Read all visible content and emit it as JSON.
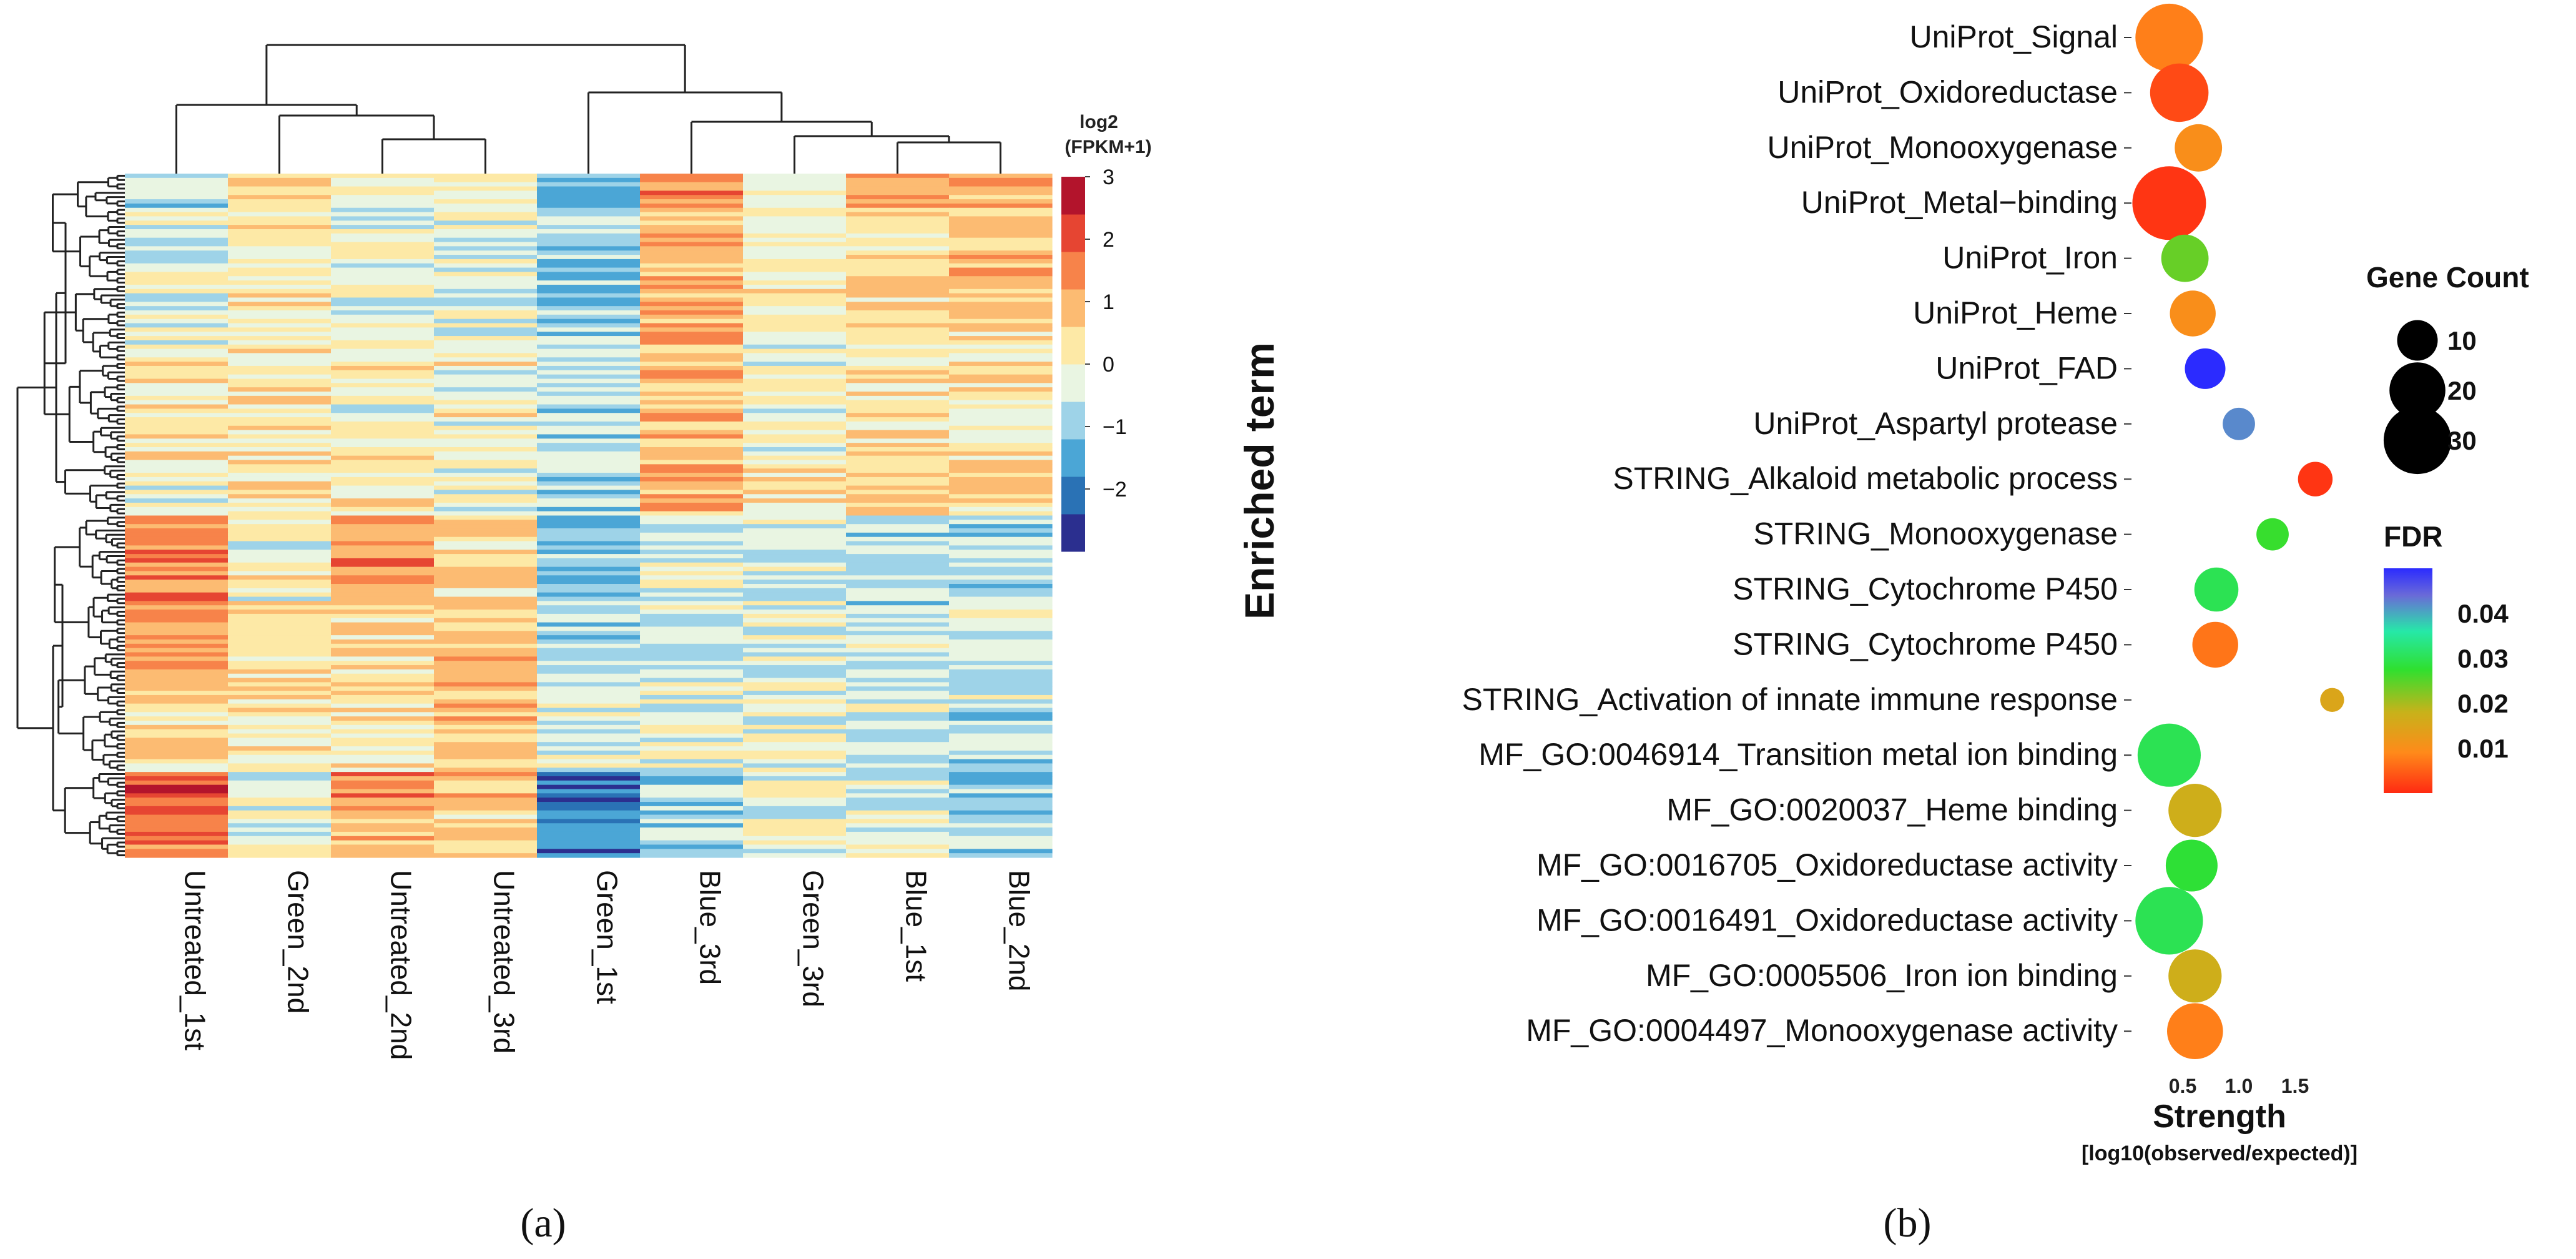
{
  "panels": {
    "a_label": "(a)",
    "b_label": "(b)"
  },
  "chart_data": [
    {
      "type": "heatmap",
      "panel": "a",
      "title": "",
      "columns": [
        "Untreated_1st",
        "Green_2nd",
        "Untreated_2nd",
        "Untreated_3rd",
        "Green_1st",
        "Blue_3rd",
        "Green_3rd",
        "Blue_1st",
        "Blue_2nd"
      ],
      "n_rows": 160,
      "row_blocks": [
        {
          "rows": [
            0,
            8
          ],
          "values": [
            -0.9,
            0.6,
            0.1,
            -0.2,
            -1.2,
            1.3,
            0.0,
            1.2,
            0.8
          ]
        },
        {
          "rows": [
            8,
            40
          ],
          "values": [
            -0.5,
            0.1,
            -0.3,
            -0.4,
            -1.0,
            1.0,
            0.1,
            0.5,
            0.6
          ]
        },
        {
          "rows": [
            40,
            68
          ],
          "values": [
            0.1,
            0.3,
            0.0,
            0.0,
            -0.6,
            0.8,
            -0.1,
            0.3,
            0.2
          ]
        },
        {
          "rows": [
            68,
            80
          ],
          "values": [
            -0.3,
            0.4,
            0.2,
            -0.3,
            -0.8,
            1.1,
            0.2,
            0.7,
            0.5
          ]
        },
        {
          "rows": [
            80,
            100
          ],
          "values": [
            1.7,
            0.0,
            1.3,
            0.5,
            -1.1,
            -0.5,
            -0.4,
            -0.7,
            -0.6
          ]
        },
        {
          "rows": [
            100,
            122
          ],
          "values": [
            1.1,
            0.3,
            0.6,
            0.6,
            -0.7,
            -0.4,
            -0.3,
            -0.6,
            -0.6
          ]
        },
        {
          "rows": [
            122,
            140
          ],
          "values": [
            0.5,
            0.1,
            0.4,
            0.8,
            -0.4,
            -0.3,
            -0.2,
            -0.5,
            -0.6
          ]
        },
        {
          "rows": [
            140,
            150
          ],
          "values": [
            2.0,
            -0.2,
            1.4,
            1.0,
            -2.2,
            -0.8,
            -0.3,
            -0.6,
            -1.2
          ]
        },
        {
          "rows": [
            150,
            160
          ],
          "values": [
            1.8,
            0.0,
            0.7,
            0.5,
            -1.8,
            -0.6,
            -0.2,
            -0.5,
            -0.9
          ]
        }
      ],
      "legend": {
        "title_line1": "log2",
        "title_line2": "(FPKM+1)",
        "range": [
          -3,
          3
        ],
        "ticks": [
          "3",
          "2",
          "1",
          "0",
          "−1",
          "−2"
        ],
        "tick_values": [
          3,
          2,
          1,
          0,
          -1,
          -2
        ],
        "colors": [
          "#2b2f8f",
          "#2a72b5",
          "#4ba6d6",
          "#9ed3e8",
          "#e9f5e2",
          "#fde9a6",
          "#fcbb72",
          "#f7834a",
          "#e64532",
          "#b3142c"
        ]
      },
      "column_dendrogram_merge_order": [
        [
          "Blue_1st",
          "Blue_2nd"
        ],
        [
          "Green_3rd",
          "Blue_1st+Blue_2nd"
        ],
        [
          "Untreated_2nd",
          "Untreated_3rd"
        ],
        [
          "Green_2nd",
          "Untreated_2nd+Untreated_3rd"
        ],
        [
          "Blue_3rd",
          "Green_3rd+Blue_1st+Blue_2nd"
        ],
        [
          "Untreated_1st",
          "Green_2nd+Untreated_2nd+Untreated_3rd"
        ],
        [
          "Green_1st",
          "Blue_3rd+Green_3rd+Blue_1st+Blue_2nd"
        ],
        [
          "Untreated_1st+Green_2nd+Untreated_2nd+Untreated_3rd",
          "Green_1st+Blue_3rd+Green_3rd+Blue_1st+Blue_2nd"
        ]
      ]
    },
    {
      "type": "scatter",
      "panel": "b",
      "title": "",
      "ylabel": "Enriched term",
      "xlabel": "Strength",
      "xlabel_sub": "[log10(observed/expected)]",
      "xlim": [
        0.3,
        1.95
      ],
      "xticks": [
        0.5,
        1.0,
        1.5
      ],
      "xtick_labels": [
        "0.5",
        "1.0",
        "1.5"
      ],
      "terms": [
        "UniProt_Signal",
        "UniProt_Oxidoreductase",
        "UniProt_Monooxygenase",
        "UniProt_Metal−binding",
        "UniProt_Iron",
        "UniProt_Heme",
        "UniProt_FAD",
        "UniProt_Aspartyl protease",
        "STRING_Alkaloid metabolic process",
        "STRING_Monooxygenase",
        "STRING_Cytochrome P450",
        "STRING_Cytochrome P450",
        "STRING_Activation of innate immune response",
        "MF_GO:0046914_Transition metal ion binding",
        "MF_GO:0020037_Heme binding",
        "MF_GO:0016705_Oxidoreductase activity",
        "MF_GO:0016491_Oxidoreductase activity",
        "MF_GO:0005506_Iron ion binding",
        "MF_GO:0004497_Monooxygenase activity"
      ],
      "strength": [
        0.38,
        0.47,
        0.64,
        0.38,
        0.52,
        0.59,
        0.7,
        1.0,
        1.68,
        1.3,
        0.8,
        0.79,
        1.83,
        0.38,
        0.61,
        0.58,
        0.38,
        0.61,
        0.61
      ],
      "gene_count": [
        30,
        22,
        14,
        36,
        14,
        13,
        10,
        6,
        7,
        6,
        12,
        13,
        3,
        26,
        18,
        17,
        30,
        18,
        20
      ],
      "fdr": [
        0.008,
        0.003,
        0.01,
        0.001,
        0.024,
        0.01,
        0.05,
        0.042,
        0.001,
        0.027,
        0.03,
        0.007,
        0.015,
        0.03,
        0.017,
        0.028,
        0.03,
        0.017,
        0.008
      ],
      "size_legend": {
        "title": "Gene Count",
        "values": [
          10,
          20,
          30
        ],
        "labels": [
          "10",
          "20",
          "30"
        ]
      },
      "color_legend": {
        "title": "FDR",
        "range": [
          0.0,
          0.05
        ],
        "ticks": [
          0.04,
          0.03,
          0.02,
          0.01
        ],
        "tick_labels": [
          "0.04",
          "0.03",
          "0.02",
          "0.01"
        ]
      }
    }
  ]
}
